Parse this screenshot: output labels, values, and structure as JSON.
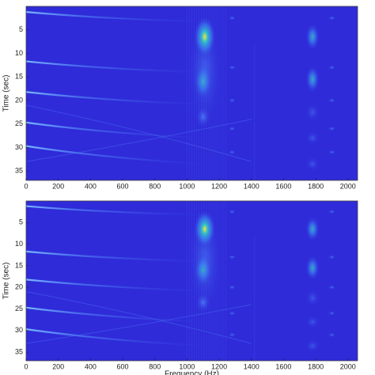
{
  "chart_data": [
    {
      "type": "heatmap",
      "ylabel": "Time (sec)",
      "xlim": [
        0,
        2060
      ],
      "xticks": [
        0,
        200,
        400,
        600,
        800,
        1000,
        1200,
        1400,
        1600,
        1800,
        2000
      ],
      "ylim": [
        0,
        37
      ],
      "yticks": [
        5,
        10,
        15,
        20,
        25,
        30,
        35
      ],
      "y_reversed": true,
      "color": "#2f2bd9"
    },
    {
      "type": "heatmap",
      "ylabel": "Time (sec)",
      "xlabel": "Frequency (Hz)",
      "xlim": [
        0,
        2060
      ],
      "xticks": [
        0,
        200,
        400,
        600,
        800,
        1000,
        1200,
        1400,
        1600,
        1800,
        2000
      ],
      "ylim": [
        0,
        37
      ],
      "yticks": [
        5,
        10,
        15,
        20,
        25,
        30,
        35
      ],
      "y_reversed": true,
      "color": "#2f2bd9"
    }
  ]
}
